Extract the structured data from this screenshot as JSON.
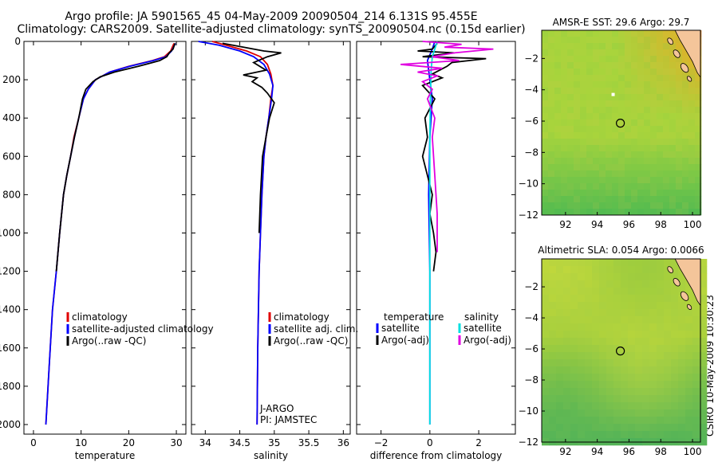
{
  "title_line1": "Argo profile: JA 5901565_45 04-May-2009 20090504_214 6.131S 95.455E",
  "title_line2": "Climatology: CARS2009. Satellite-adjusted climatology: synTS_20090504.nc (0.15d earlier)",
  "stamp": "CSIRO 10-May-2009 10:30:23",
  "colors": {
    "red": "#e00000",
    "blue": "#0000ff",
    "black": "#000000",
    "cyan": "#00e0e0",
    "magenta": "#e000e0"
  },
  "chart_data": [
    {
      "type": "line",
      "xlabel": "temperature",
      "xlim": [
        -2,
        32
      ],
      "ylim": [
        0,
        2050
      ],
      "xticks": [
        0,
        10,
        20,
        30
      ],
      "yticks": [
        0,
        200,
        400,
        600,
        800,
        1000,
        1200,
        1400,
        1600,
        1800,
        2000
      ],
      "legend": {
        "placement": "bottom-right",
        "entries": [
          "climatology",
          "satellite-adjusted climatology",
          "Argo(..raw -QC)"
        ]
      },
      "series": [
        {
          "name": "climatology",
          "color": "red",
          "x": [
            29.5,
            28.8,
            27.5,
            25,
            20,
            16,
            13,
            11.5,
            10.5,
            9.5,
            8.5,
            7.8,
            7,
            6.3,
            5.5,
            4.8,
            4,
            3.3,
            2.6
          ],
          "y": [
            10,
            50,
            80,
            100,
            130,
            160,
            200,
            250,
            300,
            400,
            500,
            600,
            700,
            800,
            1000,
            1200,
            1400,
            1700,
            2000
          ]
        },
        {
          "name": "satellite-adjusted climatology",
          "color": "blue",
          "x": [
            29.8,
            29,
            27.8,
            25.2,
            20.2,
            16,
            13,
            11.5,
            10.5,
            9.5,
            8.6,
            7.8,
            7,
            6.3,
            5.5,
            4.8,
            4,
            3.3,
            2.6
          ],
          "y": [
            10,
            50,
            80,
            100,
            130,
            160,
            200,
            250,
            300,
            400,
            500,
            600,
            700,
            800,
            1000,
            1200,
            1400,
            1700,
            2000
          ]
        },
        {
          "name": "Argo(..raw -QC)",
          "color": "black",
          "x": [
            29.7,
            29.3,
            28.5,
            28,
            26.5,
            25,
            22,
            17,
            14,
            12.5,
            11,
            10.3,
            9.5,
            8.6,
            7.8,
            7,
            6.3,
            5.5,
            4.8
          ],
          "y": [
            10,
            40,
            60,
            80,
            100,
            110,
            130,
            160,
            185,
            210,
            250,
            300,
            400,
            500,
            600,
            700,
            800,
            1000,
            1200
          ]
        }
      ]
    },
    {
      "type": "line",
      "xlabel": "salinity",
      "xlim": [
        33.8,
        36.1
      ],
      "ylim": [
        0,
        2050
      ],
      "xticks": [
        34,
        34.5,
        35,
        35.5,
        36
      ],
      "legend": {
        "placement": "bottom-right",
        "entries": [
          "climatology",
          "satellite adj. clim.",
          "Argo(..raw -QC)"
        ]
      },
      "annotations": [
        "J-ARGO",
        "PI: JAMSTEC"
      ],
      "series": [
        {
          "name": "climatology",
          "color": "red",
          "x": [
            34.1,
            34.3,
            34.6,
            34.8,
            34.9,
            34.95,
            34.98,
            34.95,
            34.92,
            34.88,
            34.85,
            34.82,
            34.8,
            34.78,
            34.76,
            34.75
          ],
          "y": [
            0,
            20,
            50,
            80,
            120,
            170,
            230,
            300,
            400,
            500,
            600,
            800,
            1000,
            1200,
            1600,
            2000
          ]
        },
        {
          "name": "satellite adj. clim.",
          "color": "blue",
          "x": [
            33.9,
            34.2,
            34.5,
            34.7,
            34.85,
            34.93,
            34.98,
            34.96,
            34.92,
            34.88,
            34.85,
            34.82,
            34.8,
            34.78,
            34.76,
            34.75
          ],
          "y": [
            0,
            20,
            50,
            80,
            120,
            170,
            230,
            300,
            400,
            500,
            600,
            800,
            1000,
            1200,
            1600,
            2000
          ]
        },
        {
          "name": "Argo(..raw -QC)",
          "color": "black",
          "x": [
            34.25,
            34.4,
            34.85,
            35.1,
            34.9,
            34.7,
            34.88,
            34.55,
            34.75,
            34.68,
            34.82,
            34.9,
            35.0,
            34.93,
            34.88,
            34.83,
            34.8,
            34.78
          ],
          "y": [
            10,
            20,
            50,
            60,
            80,
            110,
            150,
            175,
            190,
            210,
            240,
            270,
            320,
            400,
            500,
            600,
            800,
            1000
          ]
        }
      ]
    },
    {
      "type": "line",
      "xlabel": "difference from climatology",
      "xlim": [
        -3,
        3.5
      ],
      "ylim": [
        0,
        2050
      ],
      "xticks": [
        -2,
        0,
        2
      ],
      "legend": {
        "placement": "bottom",
        "entries": [
          "temperature",
          "satellite",
          "Argo(-adj)",
          "salinity",
          "satellite",
          "Argo(-adj)"
        ]
      },
      "series": [
        {
          "name": "temperature satellite",
          "color": "blue",
          "x": [
            0.2,
            0.1,
            -0.1,
            0,
            0.1,
            0,
            -0.05,
            0,
            0,
            0
          ],
          "y": [
            0,
            40,
            100,
            200,
            300,
            500,
            800,
            1200,
            1600,
            2000
          ]
        },
        {
          "name": "temperature Argo(-adj)",
          "color": "black",
          "x": [
            0.3,
            0.1,
            -0.5,
            1.0,
            -0.3,
            2.3,
            0.9,
            0.7,
            0.4,
            0.1,
            0.5,
            -0.3,
            0.2,
            -0.2,
            -0.1,
            -0.3,
            -0.1,
            0.1,
            0,
            0.15,
            0.25,
            0.15
          ],
          "y": [
            10,
            40,
            50,
            60,
            80,
            90,
            110,
            130,
            150,
            170,
            190,
            230,
            300,
            400,
            500,
            600,
            700,
            800,
            900,
            1000,
            1100,
            1200
          ]
        },
        {
          "name": "salinity satellite",
          "color": "cyan",
          "x": [
            0.3,
            0.2,
            0.1,
            0.05,
            0.02,
            0,
            0,
            0,
            0,
            0
          ],
          "y": [
            0,
            40,
            80,
            150,
            300,
            500,
            800,
            1200,
            1600,
            2000
          ]
        },
        {
          "name": "salinity Argo(-adj)",
          "color": "magenta",
          "x": [
            -0.3,
            1.3,
            0.6,
            2.6,
            1.0,
            0.1,
            1.2,
            -1.2,
            0.5,
            -0.5,
            0.3,
            -0.3,
            0.1,
            -0.1,
            0.2,
            0.1,
            0.2,
            0.3,
            0.3
          ],
          "y": [
            0,
            15,
            30,
            40,
            60,
            80,
            100,
            120,
            140,
            160,
            180,
            210,
            250,
            300,
            400,
            500,
            700,
            900,
            1100
          ]
        }
      ]
    },
    {
      "type": "heatmap",
      "title": "AMSR-E SST: 29.6 Argo: 29.7",
      "xlim": [
        90.5,
        100.5
      ],
      "ylim": [
        -12,
        -0.2
      ],
      "xticks": [
        92,
        94,
        96,
        98,
        100
      ],
      "yticks": [
        -2,
        -4,
        -6,
        -8,
        -10,
        -12
      ],
      "marker": {
        "lon": 95.455,
        "lat": -6.131
      },
      "extra_marker": {
        "lon": 95.0,
        "lat": -4.3
      }
    },
    {
      "type": "heatmap",
      "title": "Altimetric SLA: 0.054 Argo: 0.0066",
      "xlim": [
        90.5,
        100.5
      ],
      "ylim": [
        -12,
        -0.2
      ],
      "xticks": [
        92,
        94,
        96,
        98,
        100
      ],
      "yticks": [
        -2,
        -4,
        -6,
        -8,
        -10,
        -12
      ],
      "marker": {
        "lon": 95.455,
        "lat": -6.131
      }
    }
  ]
}
